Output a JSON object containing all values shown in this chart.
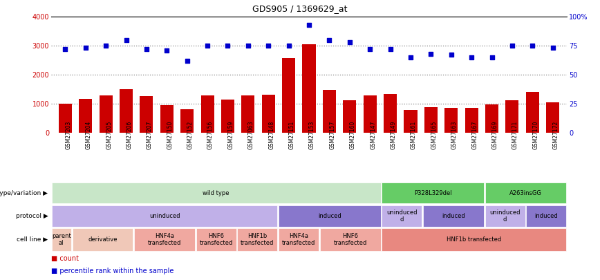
{
  "title": "GDS905 / 1369629_at",
  "samples": [
    "GSM27203",
    "GSM27204",
    "GSM27205",
    "GSM27206",
    "GSM27207",
    "GSM27150",
    "GSM27152",
    "GSM27156",
    "GSM27159",
    "GSM27063",
    "GSM27148",
    "GSM27151",
    "GSM27153",
    "GSM27157",
    "GSM27160",
    "GSM27147",
    "GSM27149",
    "GSM27161",
    "GSM27165",
    "GSM27163",
    "GSM27167",
    "GSM27169",
    "GSM27171",
    "GSM27170",
    "GSM27172"
  ],
  "counts": [
    1000,
    1150,
    1270,
    1500,
    1260,
    950,
    800,
    1280,
    1130,
    1290,
    1300,
    2580,
    3050,
    1480,
    1120,
    1290,
    1320,
    770,
    870,
    840,
    840,
    960,
    1110,
    1400,
    1050
  ],
  "percentiles": [
    72,
    73,
    75,
    80,
    72,
    71,
    62,
    75,
    75,
    75,
    75,
    75,
    93,
    80,
    78,
    72,
    72,
    65,
    68,
    67,
    65,
    65,
    75,
    75,
    73
  ],
  "bar_color": "#cc0000",
  "dot_color": "#0000cc",
  "ylim_left": [
    0,
    4000
  ],
  "ylim_right": [
    0,
    100
  ],
  "yticks_left": [
    0,
    1000,
    2000,
    3000,
    4000
  ],
  "yticks_right": [
    0,
    25,
    50,
    75,
    100
  ],
  "dotted_line_values": [
    1000,
    2000,
    3000
  ],
  "genotype_segments": [
    {
      "text": "wild type",
      "start": 0,
      "end": 16,
      "color": "#c8e6c8"
    },
    {
      "text": "P328L329del",
      "start": 16,
      "end": 21,
      "color": "#66cc66"
    },
    {
      "text": "A263insGG",
      "start": 21,
      "end": 25,
      "color": "#66cc66"
    }
  ],
  "protocol_segments": [
    {
      "text": "uninduced",
      "start": 0,
      "end": 11,
      "color": "#c0b0e8"
    },
    {
      "text": "induced",
      "start": 11,
      "end": 16,
      "color": "#8877cc"
    },
    {
      "text": "uninduced\nd",
      "start": 16,
      "end": 18,
      "color": "#c0b0e8"
    },
    {
      "text": "induced",
      "start": 18,
      "end": 21,
      "color": "#8877cc"
    },
    {
      "text": "uninduced\nd",
      "start": 21,
      "end": 23,
      "color": "#c0b0e8"
    },
    {
      "text": "induced",
      "start": 23,
      "end": 25,
      "color": "#8877cc"
    }
  ],
  "cellline_segments": [
    {
      "text": "parent\nal",
      "start": 0,
      "end": 1,
      "color": "#f0c8b8"
    },
    {
      "text": "derivative",
      "start": 1,
      "end": 4,
      "color": "#f0c8b8"
    },
    {
      "text": "HNF4a\ntransfected",
      "start": 4,
      "end": 7,
      "color": "#f0a8a0"
    },
    {
      "text": "HNF6\ntransfected",
      "start": 7,
      "end": 9,
      "color": "#f0a8a0"
    },
    {
      "text": "HNF1b\ntransfected",
      "start": 9,
      "end": 11,
      "color": "#f0a8a0"
    },
    {
      "text": "HNF4a\ntransfected",
      "start": 11,
      "end": 13,
      "color": "#f0a8a0"
    },
    {
      "text": "HNF6\ntransfected",
      "start": 13,
      "end": 16,
      "color": "#f0a8a0"
    },
    {
      "text": "HNF1b transfected",
      "start": 16,
      "end": 25,
      "color": "#e88880"
    }
  ],
  "row_labels": [
    "genotype/variation",
    "protocol",
    "cell line"
  ],
  "legend_count_color": "#cc0000",
  "legend_perc_color": "#0000cc",
  "background_color": "#ffffff",
  "xlabel_bg": "#d8d8d8"
}
